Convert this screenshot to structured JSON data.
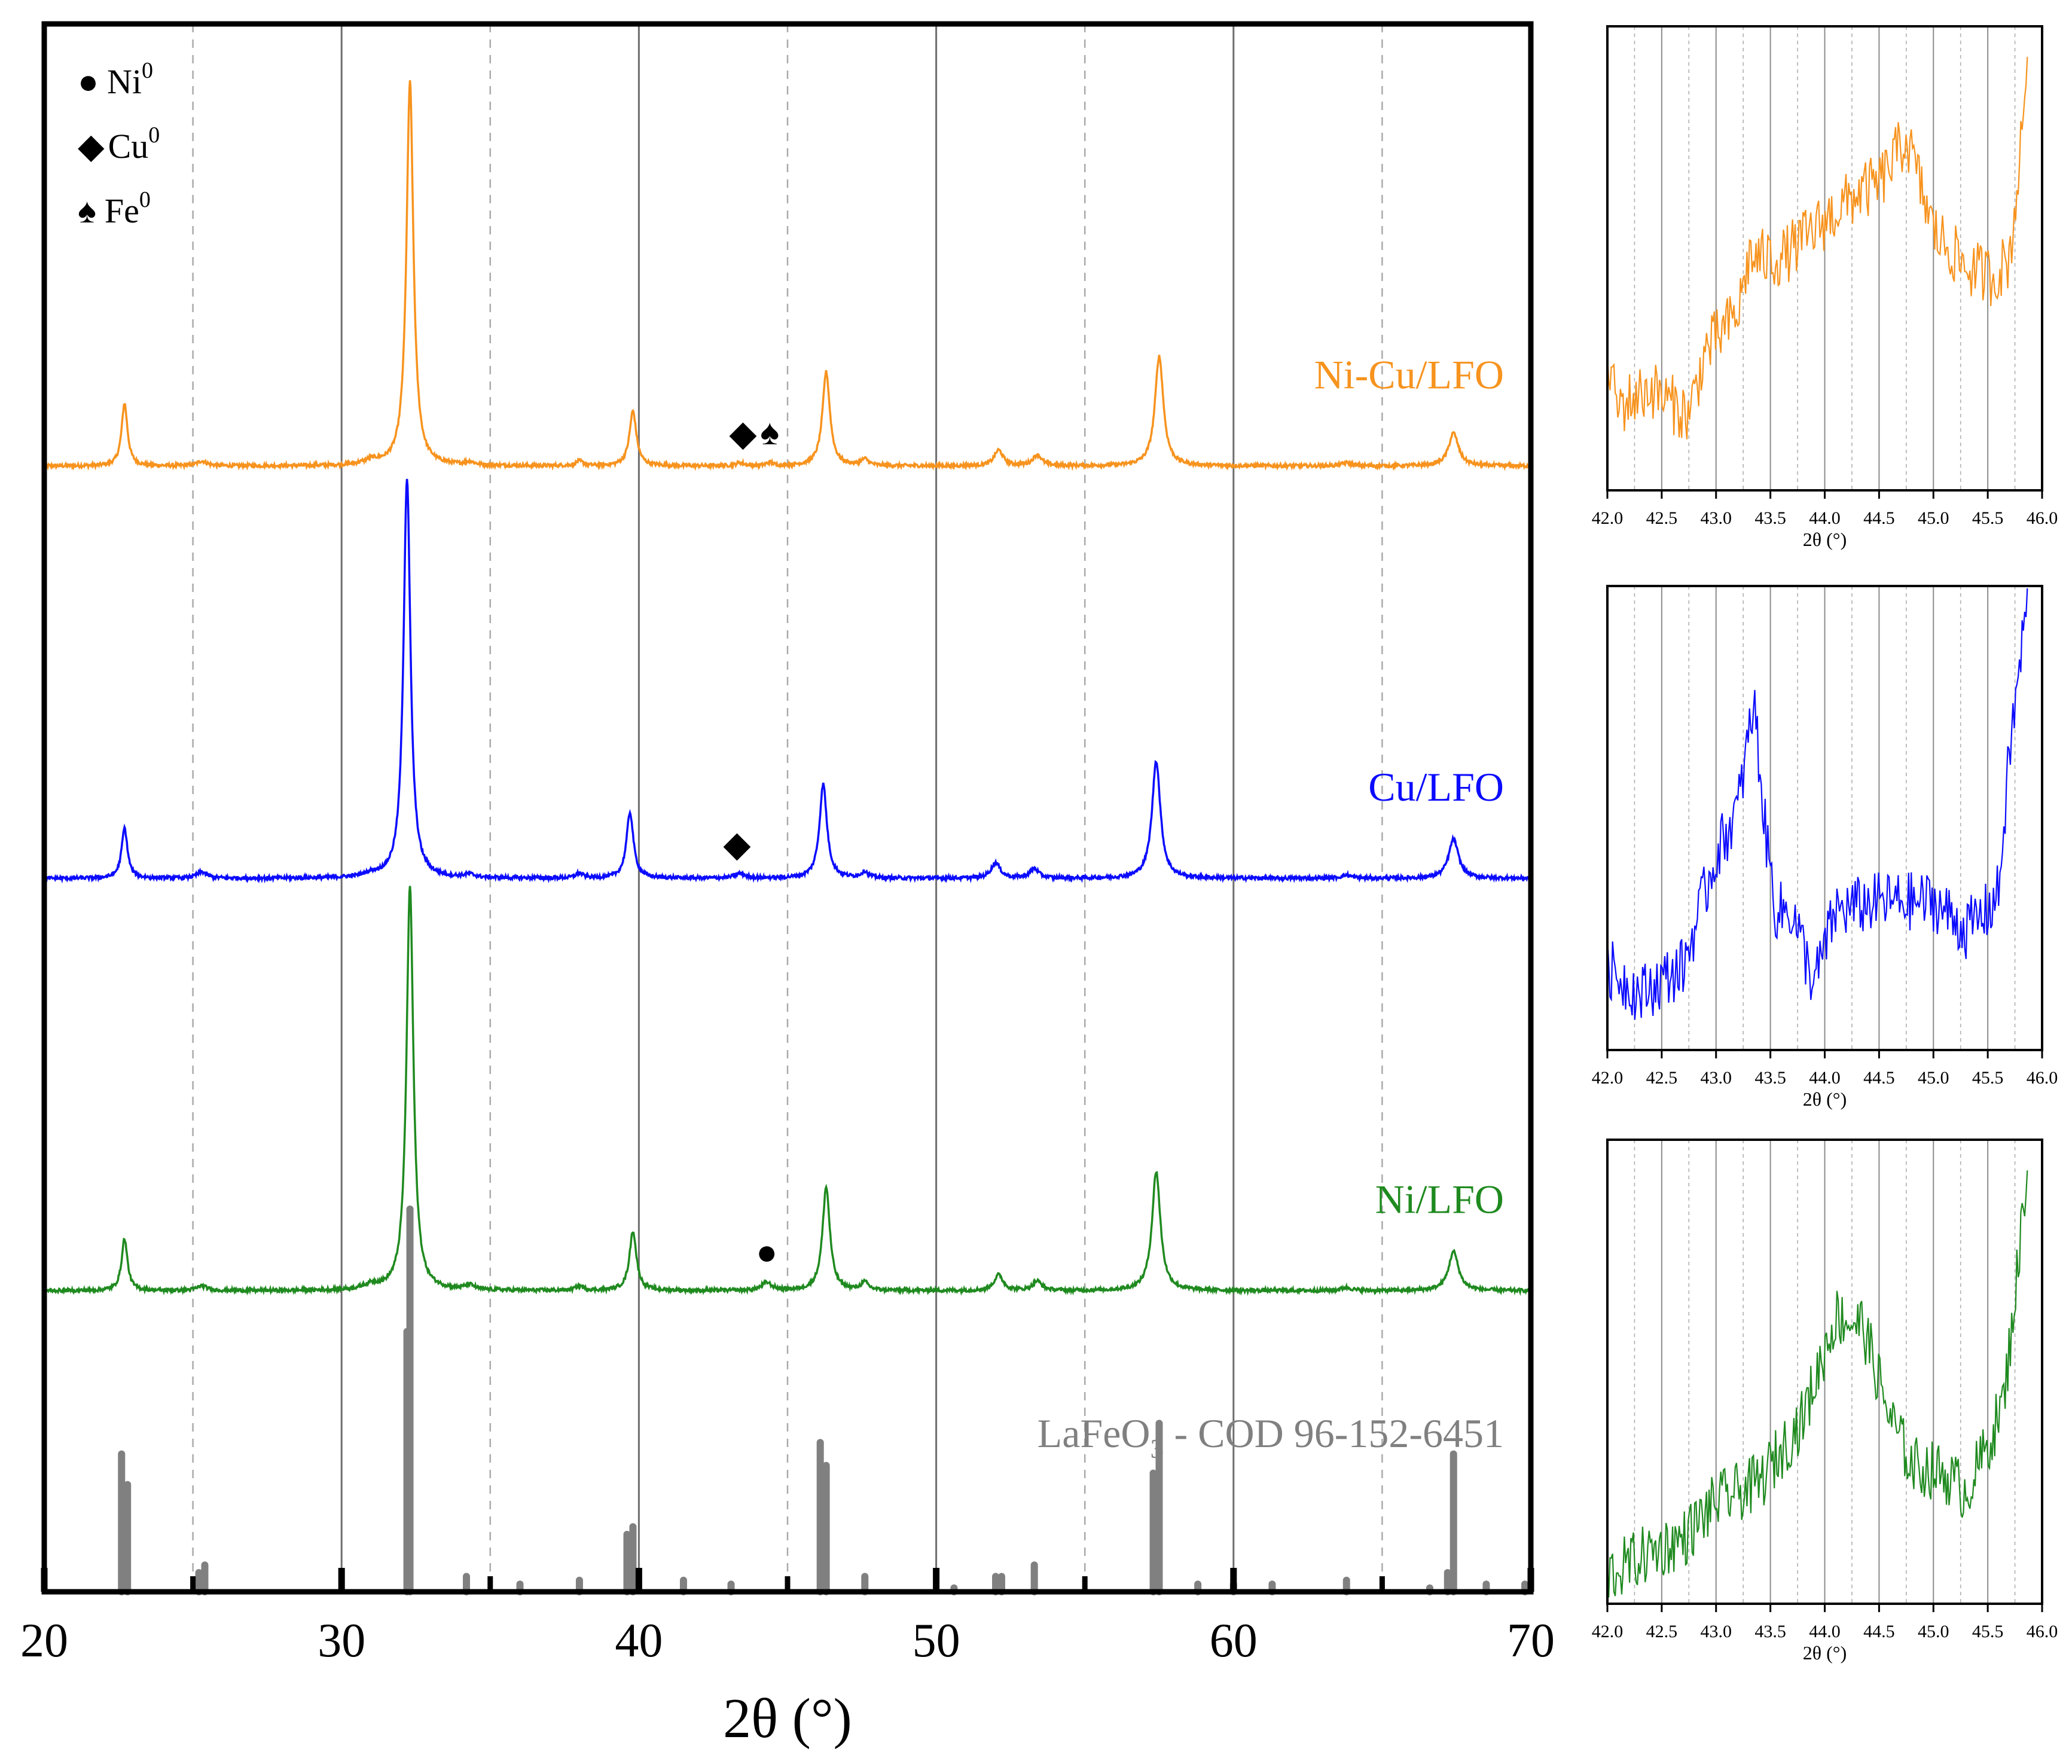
{
  "chart_data": [
    {
      "type": "line",
      "title": "",
      "xlabel": "2θ (°)",
      "ylabel": "",
      "xlim": [
        20,
        70
      ],
      "ylim": [
        0,
        1000
      ],
      "x_ticks": [
        "20",
        "30",
        "40",
        "50",
        "60",
        "70"
      ],
      "grid": "vertical lines every 5°",
      "legend": [
        {
          "symbol": "●",
          "label": "Ni",
          "sup": "0"
        },
        {
          "symbol": "◆",
          "label": "Cu",
          "sup": "0"
        },
        {
          "symbol": "♠",
          "label": "Fe",
          "sup": "0"
        }
      ],
      "series": [
        {
          "name": "Ni-Cu/LFO",
          "color": "#F7931E",
          "baseline": 718,
          "peaks": [
            [
              22.7,
              40,
              0.12
            ],
            [
              25.3,
              3,
              0.2
            ],
            [
              31.0,
              3,
              0.3
            ],
            [
              32.3,
              245,
              0.14
            ],
            [
              34.3,
              2,
              0.2
            ],
            [
              38.0,
              3,
              0.15
            ],
            [
              39.8,
              35,
              0.14
            ],
            [
              43.4,
              2,
              0.15
            ],
            [
              44.4,
              2,
              0.12
            ],
            [
              46.3,
              60,
              0.15
            ],
            [
              47.6,
              4,
              0.15
            ],
            [
              52.1,
              10,
              0.18
            ],
            [
              53.4,
              7,
              0.18
            ],
            [
              57.5,
              70,
              0.17
            ],
            [
              63.8,
              2,
              0.2
            ],
            [
              67.4,
              21,
              0.2
            ]
          ],
          "markers": [
            {
              "symbol": "◆",
              "x": 43.5
            },
            {
              "symbol": "♠",
              "x": 44.4
            }
          ]
        },
        {
          "name": "Cu/LFO",
          "color": "#0B0BFF",
          "baseline": 455,
          "peaks": [
            [
              22.7,
              32,
              0.12
            ],
            [
              25.3,
              4,
              0.2
            ],
            [
              31.0,
              2,
              0.3
            ],
            [
              32.2,
              255,
              0.14
            ],
            [
              34.3,
              2,
              0.2
            ],
            [
              38.0,
              3,
              0.15
            ],
            [
              39.7,
              42,
              0.14
            ],
            [
              43.4,
              3,
              0.2
            ],
            [
              46.2,
              60,
              0.15
            ],
            [
              47.6,
              4,
              0.15
            ],
            [
              52.0,
              10,
              0.18
            ],
            [
              53.3,
              6,
              0.18
            ],
            [
              57.4,
              75,
              0.17
            ],
            [
              63.8,
              2,
              0.2
            ],
            [
              67.4,
              25,
              0.2
            ]
          ],
          "markers": [
            {
              "symbol": "◆",
              "x": 43.3
            }
          ]
        },
        {
          "name": "Ni/LFO",
          "color": "#1F8A1F",
          "baseline": 192,
          "peaks": [
            [
              22.7,
              33,
              0.12
            ],
            [
              25.3,
              3,
              0.2
            ],
            [
              31.0,
              3,
              0.3
            ],
            [
              32.3,
              258,
              0.14
            ],
            [
              34.3,
              3,
              0.2
            ],
            [
              38.0,
              3,
              0.15
            ],
            [
              39.8,
              38,
              0.14
            ],
            [
              44.3,
              5,
              0.2
            ],
            [
              46.3,
              66,
              0.15
            ],
            [
              47.6,
              5,
              0.15
            ],
            [
              52.1,
              10,
              0.18
            ],
            [
              53.4,
              6,
              0.18
            ],
            [
              57.4,
              76,
              0.17
            ],
            [
              63.8,
              2,
              0.2
            ],
            [
              67.4,
              25,
              0.2
            ]
          ],
          "markers": [
            {
              "symbol": "●",
              "x": 44.3
            }
          ]
        }
      ],
      "reference": {
        "name": "LaFeO3 - COD 96-152-6451",
        "color": "#808080",
        "lines": [
          [
            22.6,
            36
          ],
          [
            22.8,
            28
          ],
          [
            25.2,
            5
          ],
          [
            25.4,
            7
          ],
          [
            32.2,
            68
          ],
          [
            32.3,
            100
          ],
          [
            34.2,
            4
          ],
          [
            36.0,
            2
          ],
          [
            38.0,
            3
          ],
          [
            39.6,
            15
          ],
          [
            39.8,
            17
          ],
          [
            41.5,
            3
          ],
          [
            43.1,
            2
          ],
          [
            46.1,
            39
          ],
          [
            46.3,
            33
          ],
          [
            47.6,
            4
          ],
          [
            50.6,
            1
          ],
          [
            52.0,
            4
          ],
          [
            52.2,
            4
          ],
          [
            53.3,
            7
          ],
          [
            57.3,
            31
          ],
          [
            57.5,
            44
          ],
          [
            58.8,
            2
          ],
          [
            60.0,
            2
          ],
          [
            61.3,
            2
          ],
          [
            63.8,
            3
          ],
          [
            66.6,
            1
          ],
          [
            67.2,
            5
          ],
          [
            67.4,
            36
          ],
          [
            68.5,
            2
          ],
          [
            69.8,
            2
          ]
        ]
      }
    },
    {
      "type": "line",
      "title": "inset-orange",
      "xlabel": "2θ (°)",
      "xlim": [
        42.0,
        46.0
      ],
      "color": "#F7931E",
      "x_ticks": [
        "42.0",
        "42.5",
        "43.0",
        "43.5",
        "44.0",
        "44.5",
        "45.0",
        "45.5",
        "46.0"
      ],
      "anchors": [
        [
          42.0,
          0.3
        ],
        [
          42.05,
          0.22
        ],
        [
          42.1,
          0.18
        ],
        [
          42.4,
          0.22
        ],
        [
          42.75,
          0.16
        ],
        [
          42.9,
          0.3
        ],
        [
          43.2,
          0.38
        ],
        [
          43.3,
          0.5
        ],
        [
          43.6,
          0.5
        ],
        [
          44.0,
          0.58
        ],
        [
          44.3,
          0.64
        ],
        [
          44.5,
          0.66
        ],
        [
          44.75,
          0.76
        ],
        [
          45.0,
          0.56
        ],
        [
          45.3,
          0.48
        ],
        [
          45.55,
          0.46
        ],
        [
          45.7,
          0.5
        ],
        [
          45.8,
          0.72
        ],
        [
          45.87,
          0.98
        ]
      ]
    },
    {
      "type": "line",
      "title": "inset-blue",
      "xlabel": "2θ (°)",
      "xlim": [
        42.0,
        46.0
      ],
      "color": "#0B0BFF",
      "x_ticks": [
        "42.0",
        "42.5",
        "43.0",
        "43.5",
        "44.0",
        "44.5",
        "45.0",
        "45.5",
        "46.0"
      ],
      "anchors": [
        [
          42.0,
          0.18
        ],
        [
          42.3,
          0.12
        ],
        [
          42.7,
          0.18
        ],
        [
          43.0,
          0.42
        ],
        [
          43.2,
          0.52
        ],
        [
          43.35,
          0.75
        ],
        [
          43.45,
          0.48
        ],
        [
          43.55,
          0.3
        ],
        [
          43.7,
          0.3
        ],
        [
          43.9,
          0.14
        ],
        [
          44.1,
          0.3
        ],
        [
          44.5,
          0.32
        ],
        [
          45.0,
          0.32
        ],
        [
          45.3,
          0.26
        ],
        [
          45.5,
          0.3
        ],
        [
          45.6,
          0.34
        ],
        [
          45.7,
          0.64
        ],
        [
          45.8,
          0.84
        ],
        [
          45.87,
          0.99
        ]
      ]
    },
    {
      "type": "line",
      "title": "inset-green",
      "xlabel": "2θ (°)",
      "xlim": [
        42.0,
        46.0
      ],
      "color": "#1F8A1F",
      "x_ticks": [
        "42.0",
        "42.5",
        "43.0",
        "43.5",
        "44.0",
        "44.5",
        "45.0",
        "45.5",
        "46.0"
      ],
      "anchors": [
        [
          42.0,
          0.06
        ],
        [
          42.3,
          0.1
        ],
        [
          42.7,
          0.14
        ],
        [
          43.0,
          0.22
        ],
        [
          43.4,
          0.26
        ],
        [
          43.8,
          0.4
        ],
        [
          44.1,
          0.62
        ],
        [
          44.35,
          0.6
        ],
        [
          44.6,
          0.4
        ],
        [
          44.8,
          0.3
        ],
        [
          45.1,
          0.28
        ],
        [
          45.3,
          0.24
        ],
        [
          45.5,
          0.34
        ],
        [
          45.65,
          0.44
        ],
        [
          45.8,
          0.78
        ],
        [
          45.87,
          0.98
        ]
      ]
    }
  ]
}
